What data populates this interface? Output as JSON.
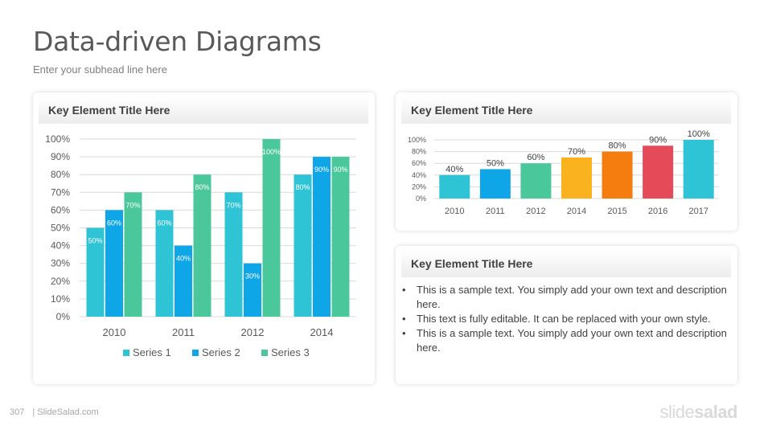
{
  "page": {
    "title": "Data-driven Diagrams",
    "subtitle": "Enter your subhead line here",
    "footer_page": "307",
    "footer_site": "| SlideSalad.com",
    "brand_light": "slide",
    "brand_bold": "salad"
  },
  "cards": {
    "left_title": "Key Element Title Here",
    "top_right_title": "Key Element Title Here",
    "bottom_right_title": "Key Element Title Here",
    "bullets": [
      "This is a sample text. You simply add your own text and description here.",
      "This text is fully editable. It can be replaced with your own style.",
      "This is a sample text. You simply add your own text and description here."
    ]
  },
  "chart_data": [
    {
      "type": "bar",
      "categories": [
        "2010",
        "2011",
        "2012",
        "2014"
      ],
      "series": [
        {
          "name": "Series 1",
          "values": [
            50,
            60,
            70,
            80
          ],
          "color": "#2ec4d6"
        },
        {
          "name": "Series 2",
          "values": [
            60,
            40,
            30,
            90
          ],
          "color": "#0fa6e8"
        },
        {
          "name": "Series 3",
          "values": [
            70,
            80,
            100,
            90
          ],
          "color": "#4ac89b"
        }
      ],
      "yticks": [
        "0%",
        "10%",
        "20%",
        "30%",
        "40%",
        "50%",
        "60%",
        "70%",
        "80%",
        "90%",
        "100%"
      ],
      "ylim": [
        0,
        100
      ],
      "grid": true,
      "legend": "bottom"
    },
    {
      "type": "bar",
      "categories": [
        "2010",
        "2011",
        "2012",
        "2014",
        "2015",
        "2016",
        "2017"
      ],
      "values": [
        40,
        50,
        60,
        70,
        80,
        90,
        100
      ],
      "labels": [
        "40%",
        "50%",
        "60%",
        "70%",
        "80%",
        "90%",
        "100%"
      ],
      "colors": [
        "#2ec4d6",
        "#0fa6e8",
        "#4ac89b",
        "#fbb21f",
        "#f57c0f",
        "#e44a57",
        "#2ec4d6"
      ],
      "yticks": [
        "0%",
        "20%",
        "40%",
        "60%",
        "80%",
        "100%"
      ],
      "ylim": [
        0,
        100
      ],
      "grid": true
    }
  ]
}
